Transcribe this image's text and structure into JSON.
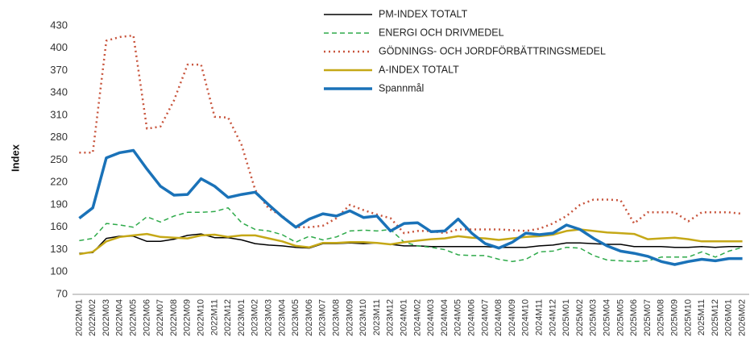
{
  "chart_data": {
    "type": "line",
    "y_label": "Index",
    "categories": [
      "2022M01",
      "2022M02",
      "2022M03",
      "2022M04",
      "2022M05",
      "2022M06",
      "2022M07",
      "2022M08",
      "2022M09",
      "2022M10",
      "2022M11",
      "2022M12",
      "2023M01",
      "2023M02",
      "2023M03",
      "2023M04",
      "2023M05",
      "2023M06",
      "2023M07",
      "2023M08",
      "2023M09",
      "2023M10",
      "2023M11",
      "2023M12",
      "2024M01",
      "2024M02",
      "2024M03",
      "2024M04",
      "2024M05",
      "2024M06",
      "2024M07",
      "2024M08",
      "2024M09",
      "2024M10",
      "2024M11",
      "2024M12",
      "2025M01",
      "2025M02",
      "2025M03",
      "2025M04",
      "2025M05",
      "2025M06",
      "2025M07",
      "2025M08",
      "2025M09",
      "2025M10",
      "2025M11",
      "2025M12",
      "2026M01",
      "2026M02"
    ],
    "ylim": [
      70,
      430
    ],
    "yticks": [
      70,
      100,
      130,
      160,
      190,
      220,
      250,
      280,
      310,
      340,
      370,
      400,
      430
    ],
    "grid": false,
    "legend": "top",
    "series": [
      {
        "name": "PM-INDEX TOTALT",
        "color": "#000000",
        "style": "solid",
        "width": 1.5,
        "values": [
          125,
          126,
          145,
          148,
          148,
          141,
          141,
          144,
          149,
          151,
          146,
          146,
          143,
          138,
          136,
          135,
          133,
          132,
          138,
          138,
          139,
          138,
          139,
          137,
          135,
          135,
          134,
          134,
          134,
          134,
          134,
          133,
          133,
          133,
          135,
          136,
          139,
          139,
          138,
          137,
          137,
          134,
          134,
          134,
          133,
          133,
          134,
          133,
          134,
          134
        ]
      },
      {
        "name": "ENERGI OCH DRIVMEDEL",
        "color": "#2eaa4a",
        "style": "dashed",
        "width": 1.5,
        "values": [
          142,
          145,
          165,
          163,
          160,
          174,
          167,
          175,
          180,
          180,
          181,
          186,
          166,
          157,
          155,
          150,
          140,
          148,
          143,
          147,
          155,
          156,
          155,
          157,
          140,
          135,
          133,
          130,
          123,
          122,
          122,
          117,
          114,
          117,
          127,
          128,
          133,
          132,
          122,
          116,
          115,
          114,
          115,
          120,
          120,
          120,
          127,
          120,
          128,
          133
        ]
      },
      {
        "name": "GÖDNINGS- OCH JORDFÖRBÄTTRINGSMEDEL",
        "color": "#c8553d",
        "style": "dotted",
        "width": 2.5,
        "values": [
          260,
          260,
          410,
          415,
          417,
          292,
          295,
          330,
          378,
          378,
          308,
          307,
          270,
          210,
          185,
          175,
          160,
          160,
          162,
          172,
          190,
          183,
          177,
          172,
          152,
          155,
          155,
          152,
          157,
          157,
          157,
          157,
          156,
          155,
          158,
          165,
          175,
          190,
          197,
          197,
          196,
          165,
          180,
          180,
          180,
          168,
          180,
          180,
          180,
          178
        ]
      },
      {
        "name": "A-INDEX TOTALT",
        "color": "#c5a817",
        "style": "solid",
        "width": 2.5,
        "values": [
          124,
          127,
          141,
          147,
          149,
          151,
          147,
          146,
          145,
          149,
          150,
          147,
          149,
          149,
          145,
          141,
          135,
          133,
          139,
          139,
          140,
          140,
          139,
          137,
          140,
          142,
          144,
          145,
          148,
          146,
          145,
          143,
          145,
          147,
          148,
          150,
          155,
          157,
          155,
          153,
          152,
          151,
          144,
          145,
          146,
          144,
          141,
          141,
          141,
          141
        ]
      },
      {
        "name": "Spannmål",
        "color": "#1a72b8",
        "style": "solid",
        "width": 3.5,
        "values": [
          172,
          186,
          253,
          260,
          263,
          238,
          215,
          203,
          204,
          225,
          215,
          200,
          204,
          207,
          190,
          174,
          160,
          171,
          178,
          175,
          182,
          173,
          175,
          155,
          165,
          166,
          154,
          155,
          171,
          152,
          138,
          132,
          140,
          152,
          150,
          152,
          163,
          157,
          145,
          135,
          128,
          125,
          121,
          114,
          110,
          114,
          117,
          115,
          118,
          118
        ]
      }
    ]
  }
}
